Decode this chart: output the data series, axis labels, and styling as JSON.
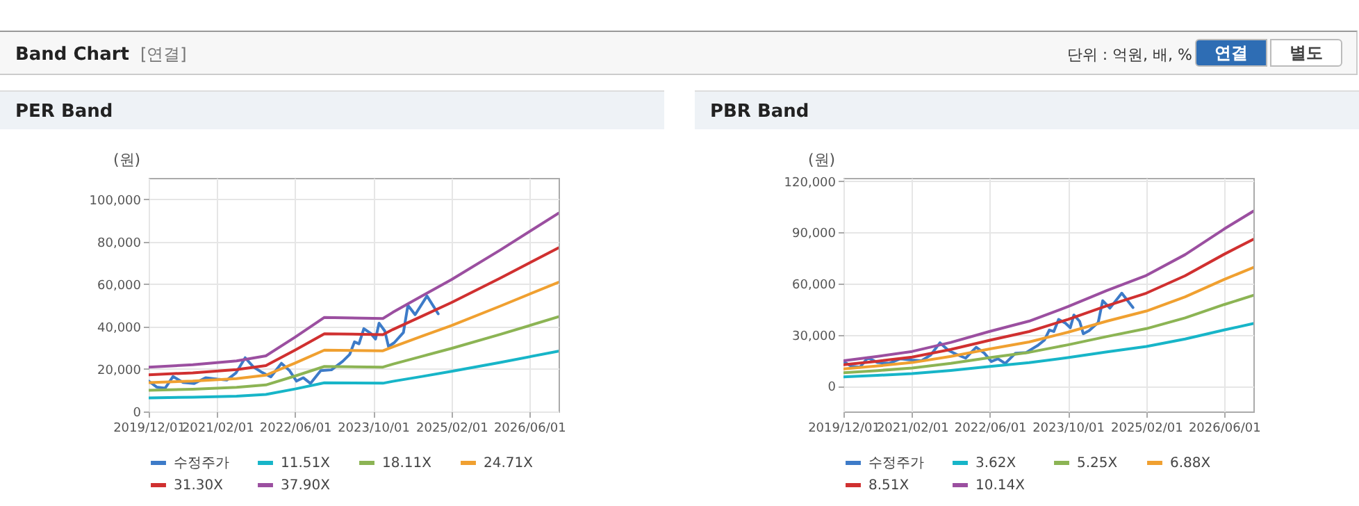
{
  "chart_data": [
    {
      "type": "other",
      "title": "Band Chart",
      "annotations": [
        "[연결]",
        "단위 : 억원, 배, %",
        "연결",
        "별도"
      ]
    },
    {
      "type": "line",
      "title": "PER Band",
      "ylabel": "(원)",
      "grid": true,
      "legend": "bottom",
      "xlim": [
        "2019-12-01",
        "2026-12-01"
      ],
      "xticks": [
        {
          "value": "2019-12-01",
          "label": "2019/12/01"
        },
        {
          "value": "2021-02-01",
          "label": "2021/02/01"
        },
        {
          "value": "2022-06-01",
          "label": "2022/06/01"
        },
        {
          "value": "2023-10-01",
          "label": "2023/10/01"
        },
        {
          "value": "2025-02-01",
          "label": "2025/02/01"
        },
        {
          "value": "2026-06-01",
          "label": "2026/06/01"
        }
      ],
      "ylim": [
        0,
        110000
      ],
      "yticks": [
        {
          "value": 0,
          "label": "0"
        },
        {
          "value": 20000,
          "label": "20,000"
        },
        {
          "value": 40000,
          "label": "40,000"
        },
        {
          "value": 60000,
          "label": "60,000"
        },
        {
          "value": 80000,
          "label": "80,000"
        },
        {
          "value": 100000,
          "label": "100,000"
        }
      ],
      "series": [
        {
          "name": "수정주가",
          "color": "#3d7bc8",
          "x": [
            "2019-12-01",
            "2020-01-20",
            "2020-03-13",
            "2020-05-01",
            "2020-07-01",
            "2020-09-10",
            "2020-11-20",
            "2021-02-01",
            "2021-04-01",
            "2021-05-28",
            "2021-07-25",
            "2021-09-15",
            "2021-11-05",
            "2022-01-01",
            "2022-03-08",
            "2022-04-28",
            "2022-06-10",
            "2022-07-22",
            "2022-09-05",
            "2022-11-08",
            "2023-01-14",
            "2023-03-25",
            "2023-05-08",
            "2023-06-07",
            "2023-07-05",
            "2023-08-04",
            "2023-09-16",
            "2023-10-16",
            "2023-11-07",
            "2023-12-13",
            "2024-01-05",
            "2024-02-10",
            "2024-04-07",
            "2024-05-05",
            "2024-06-19",
            "2024-09-01",
            "2024-11-10"
          ],
          "values": [
            14300,
            11500,
            11000,
            16500,
            13700,
            13200,
            15900,
            15200,
            14800,
            18100,
            25300,
            20900,
            18500,
            16300,
            22700,
            19200,
            14300,
            15900,
            13200,
            19200,
            19600,
            23600,
            26900,
            32800,
            31900,
            39000,
            36800,
            34100,
            41600,
            37900,
            30600,
            32400,
            37200,
            50000,
            45600,
            54400,
            46000
          ]
        },
        {
          "name": "11.51X",
          "color": "#17b5c8",
          "x": [
            "2019-12-01",
            "2020-09-01",
            "2021-06-01",
            "2021-12-01",
            "2022-06-01",
            "2022-12-01",
            "2023-12-01",
            "2024-02-01",
            "2024-08-01",
            "2025-02-01",
            "2025-12-01",
            "2026-12-01"
          ],
          "values": [
            6400,
            6700,
            7200,
            8000,
            10600,
            13500,
            13300,
            14200,
            16500,
            18900,
            23100,
            28400
          ]
        },
        {
          "name": "18.11X",
          "color": "#8cb454",
          "x": [
            "2019-12-01",
            "2020-09-01",
            "2021-06-01",
            "2021-12-01",
            "2022-06-01",
            "2022-12-01",
            "2023-12-01",
            "2024-02-01",
            "2024-08-01",
            "2025-02-01",
            "2025-12-01",
            "2026-12-01"
          ],
          "values": [
            10000,
            10500,
            11400,
            12500,
            16700,
            21200,
            20900,
            22300,
            26000,
            29700,
            36300,
            44600
          ]
        },
        {
          "name": "24.71X",
          "color": "#f0a030",
          "x": [
            "2019-12-01",
            "2020-09-01",
            "2021-06-01",
            "2021-12-01",
            "2022-06-01",
            "2022-12-01",
            "2023-12-01",
            "2024-02-01",
            "2024-08-01",
            "2025-02-01",
            "2025-12-01",
            "2026-12-01"
          ],
          "values": [
            13600,
            14300,
            15500,
            17100,
            22800,
            28900,
            28600,
            30400,
            35500,
            40500,
            49600,
            60900
          ]
        },
        {
          "name": "31.30X",
          "color": "#d03030",
          "x": [
            "2019-12-01",
            "2020-09-01",
            "2021-06-01",
            "2021-12-01",
            "2022-06-01",
            "2022-12-01",
            "2023-12-01",
            "2024-02-01",
            "2024-08-01",
            "2025-02-01",
            "2025-12-01",
            "2026-12-01"
          ],
          "values": [
            17300,
            18200,
            19700,
            21600,
            28900,
            36600,
            36200,
            38600,
            44900,
            51300,
            62800,
            77100
          ]
        },
        {
          "name": "37.90X",
          "color": "#9b4fa0",
          "x": [
            "2019-12-01",
            "2020-09-01",
            "2021-06-01",
            "2021-12-01",
            "2022-06-01",
            "2022-12-01",
            "2023-12-01",
            "2024-02-01",
            "2024-08-01",
            "2025-02-01",
            "2025-12-01",
            "2026-12-01"
          ],
          "values": [
            20900,
            22000,
            23800,
            26200,
            35000,
            44300,
            43800,
            46700,
            54400,
            62100,
            76000,
            93400
          ]
        }
      ]
    },
    {
      "type": "line",
      "title": "PBR Band",
      "ylabel": "(원)",
      "grid": true,
      "legend": "bottom",
      "xlim": [
        "2019-12-01",
        "2026-12-01"
      ],
      "xticks": [
        {
          "value": "2019-12-01",
          "label": "2019/12/01"
        },
        {
          "value": "2021-02-01",
          "label": "2021/02/01"
        },
        {
          "value": "2022-06-01",
          "label": "2022/06/01"
        },
        {
          "value": "2023-10-01",
          "label": "2023/10/01"
        },
        {
          "value": "2025-02-01",
          "label": "2025/02/01"
        },
        {
          "value": "2026-06-01",
          "label": "2026/06/01"
        }
      ],
      "ylim": [
        -15000,
        122000
      ],
      "yticks": [
        {
          "value": 0,
          "label": "0"
        },
        {
          "value": 30000,
          "label": "30,000"
        },
        {
          "value": 60000,
          "label": "60,000"
        },
        {
          "value": 90000,
          "label": "90,000"
        },
        {
          "value": 120000,
          "label": "120,000"
        }
      ],
      "series": [
        {
          "name": "수정주가",
          "color": "#3d7bc8",
          "x": [
            "2019-12-01",
            "2020-01-20",
            "2020-03-13",
            "2020-05-01",
            "2020-07-01",
            "2020-09-10",
            "2020-11-20",
            "2021-02-01",
            "2021-04-01",
            "2021-05-28",
            "2021-07-25",
            "2021-09-15",
            "2021-11-05",
            "2022-01-01",
            "2022-03-08",
            "2022-04-28",
            "2022-06-10",
            "2022-07-22",
            "2022-09-05",
            "2022-11-08",
            "2023-01-14",
            "2023-03-25",
            "2023-05-08",
            "2023-06-07",
            "2023-07-05",
            "2023-08-04",
            "2023-09-16",
            "2023-10-16",
            "2023-11-07",
            "2023-12-13",
            "2024-01-05",
            "2024-02-10",
            "2024-04-07",
            "2024-05-05",
            "2024-06-19",
            "2024-09-01",
            "2024-11-10"
          ],
          "values": [
            14300,
            11500,
            11000,
            16500,
            13700,
            13200,
            15900,
            15200,
            14800,
            18100,
            25300,
            20900,
            18500,
            16300,
            22700,
            19200,
            14300,
            15900,
            13200,
            19200,
            19600,
            23600,
            26900,
            32800,
            31900,
            39000,
            36800,
            34100,
            41600,
            37900,
            30600,
            32400,
            37200,
            50000,
            45600,
            54400,
            46000
          ]
        },
        {
          "name": "3.62X",
          "color": "#17b5c8",
          "x": [
            "2019-12-01",
            "2020-07-01",
            "2021-02-01",
            "2021-10-01",
            "2022-06-01",
            "2023-02-01",
            "2023-10-01",
            "2024-06-01",
            "2025-02-01",
            "2025-10-01",
            "2026-06-01",
            "2026-12-01"
          ],
          "values": [
            5300,
            6200,
            7200,
            9100,
            11400,
            13600,
            16600,
            20000,
            23100,
            27500,
            32800,
            36600
          ]
        },
        {
          "name": "5.25X",
          "color": "#8cb454",
          "x": [
            "2019-12-01",
            "2020-07-01",
            "2021-02-01",
            "2021-10-01",
            "2022-06-01",
            "2023-02-01",
            "2023-10-01",
            "2024-06-01",
            "2025-02-01",
            "2025-10-01",
            "2026-06-01",
            "2026-12-01"
          ],
          "values": [
            7700,
            9000,
            10500,
            13200,
            16600,
            19700,
            24100,
            29000,
            33600,
            39900,
            47700,
            53100
          ]
        },
        {
          "name": "6.88X",
          "color": "#f0a030",
          "x": [
            "2019-12-01",
            "2020-07-01",
            "2021-02-01",
            "2021-10-01",
            "2022-06-01",
            "2023-02-01",
            "2023-10-01",
            "2024-06-01",
            "2025-02-01",
            "2025-10-01",
            "2026-06-01",
            "2026-12-01"
          ],
          "values": [
            10000,
            11700,
            13700,
            17300,
            21700,
            25800,
            31500,
            38000,
            43900,
            52200,
            62400,
            69500
          ]
        },
        {
          "name": "8.51X",
          "color": "#d03030",
          "x": [
            "2019-12-01",
            "2020-07-01",
            "2021-02-01",
            "2021-10-01",
            "2022-06-01",
            "2023-02-01",
            "2023-10-01",
            "2024-06-01",
            "2025-02-01",
            "2025-10-01",
            "2026-06-01",
            "2026-12-01"
          ],
          "values": [
            12400,
            14500,
            16900,
            21400,
            26800,
            31900,
            39000,
            47000,
            54400,
            64600,
            77200,
            86000
          ]
        },
        {
          "name": "10.14X",
          "color": "#9b4fa0",
          "x": [
            "2019-12-01",
            "2020-07-01",
            "2021-02-01",
            "2021-10-01",
            "2022-06-01",
            "2023-02-01",
            "2023-10-01",
            "2024-06-01",
            "2025-02-01",
            "2025-10-01",
            "2026-06-01",
            "2026-12-01"
          ],
          "values": [
            14800,
            17300,
            20200,
            25500,
            32000,
            38000,
            46500,
            56000,
            64800,
            77000,
            92000,
            102500
          ]
        }
      ]
    }
  ]
}
